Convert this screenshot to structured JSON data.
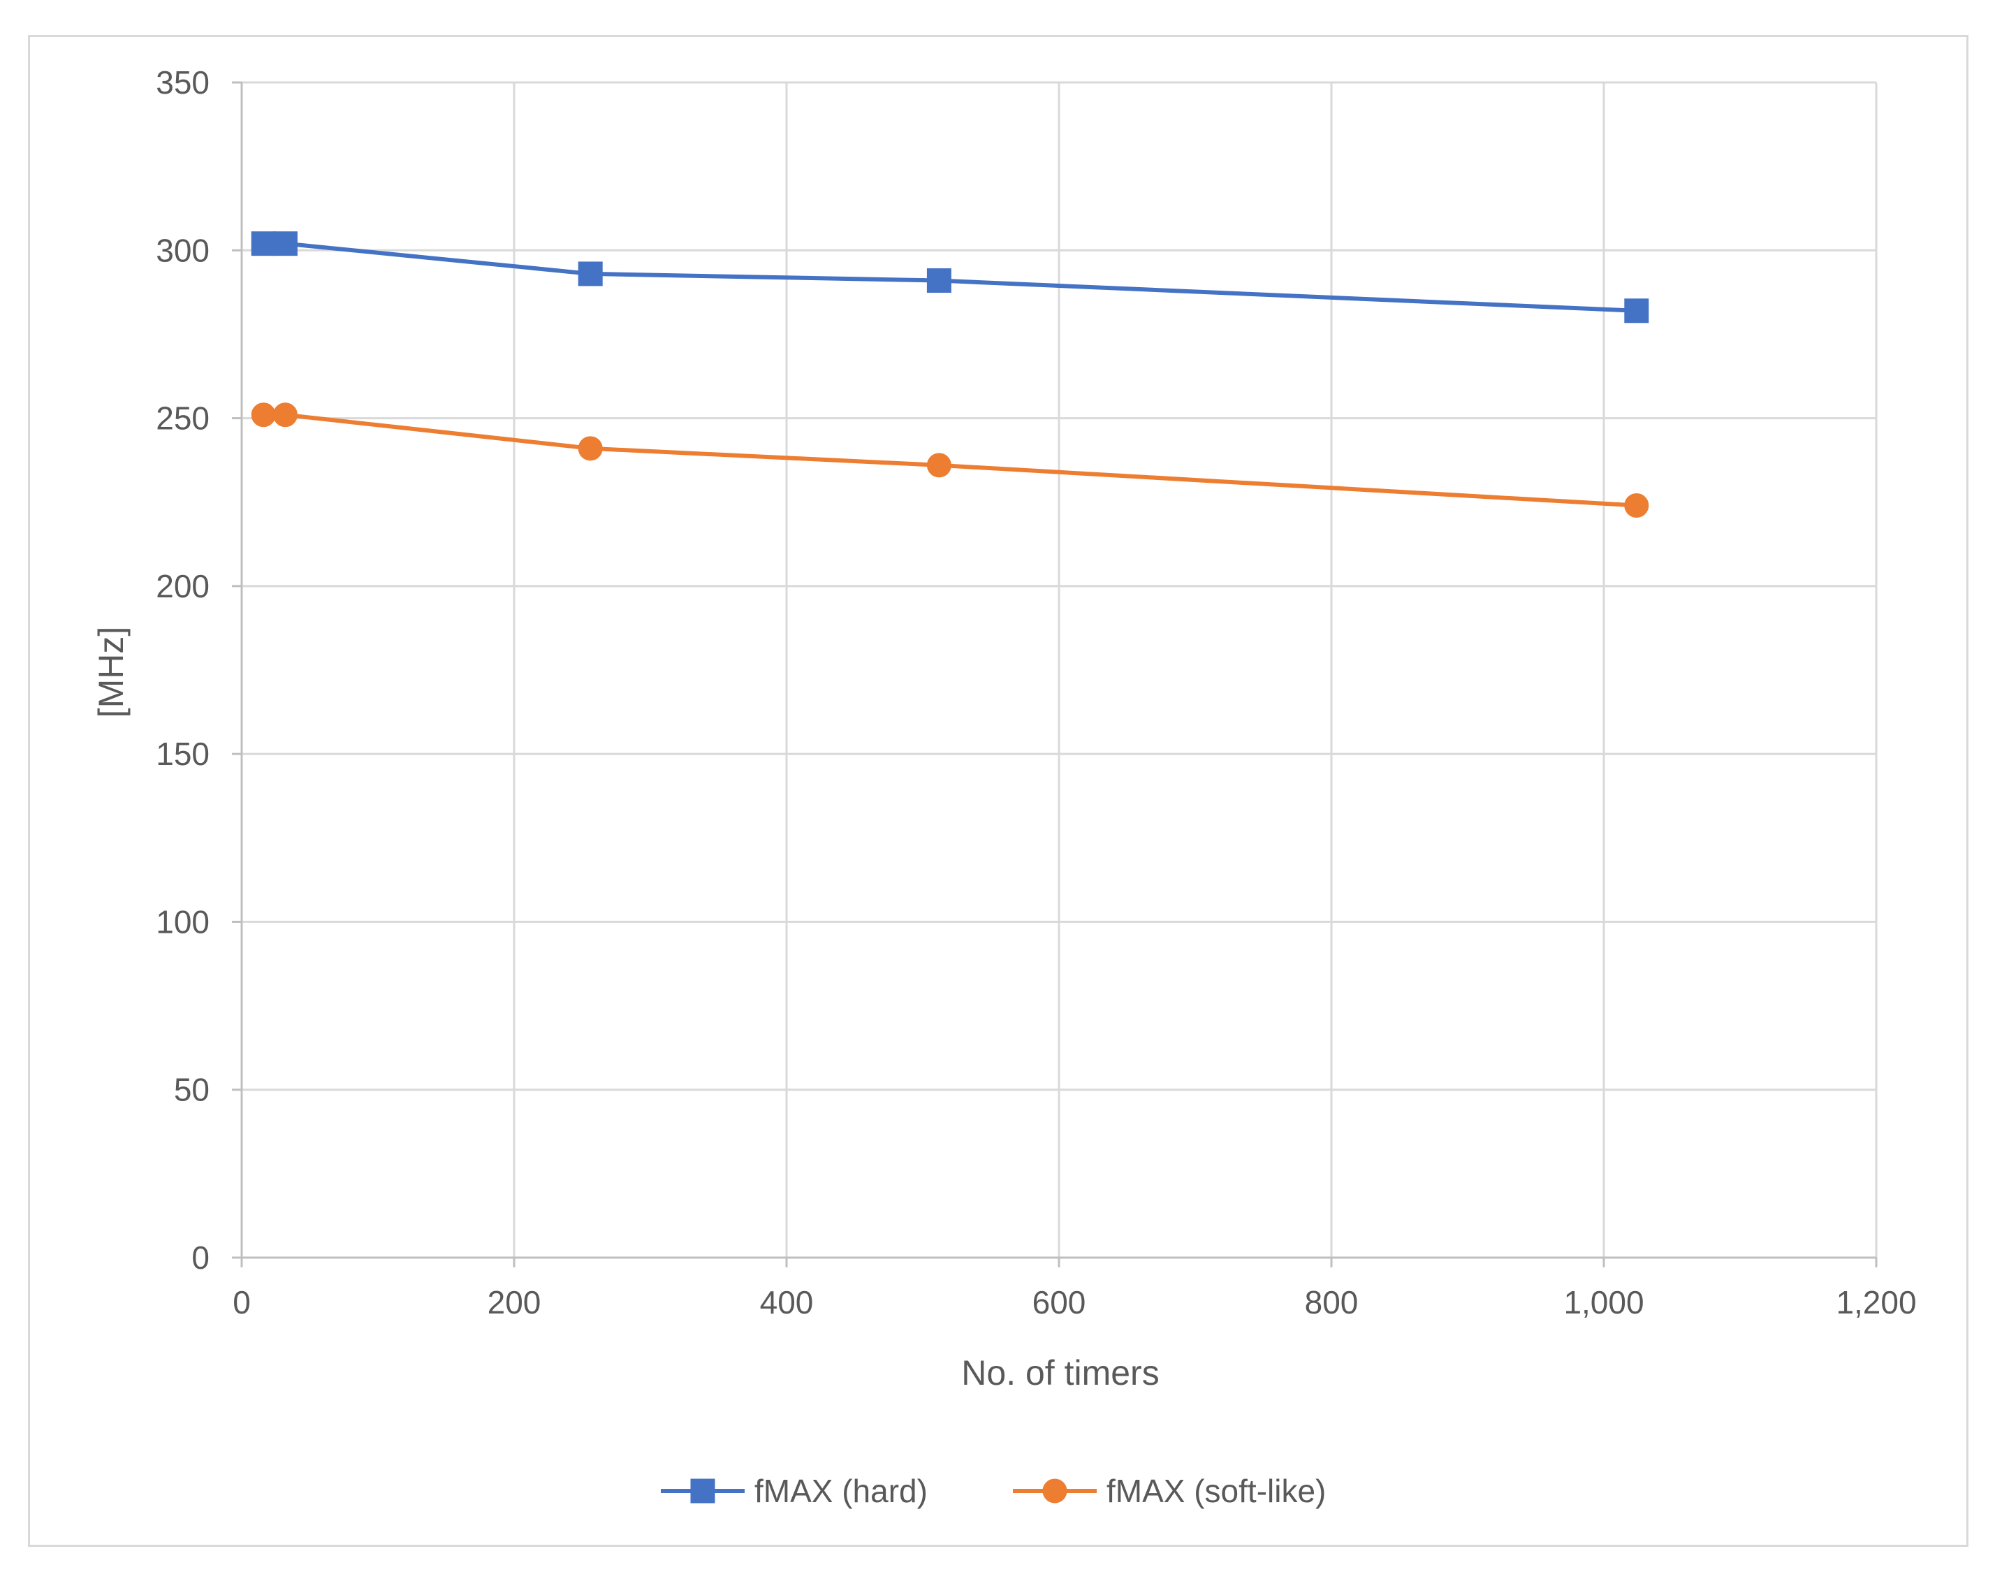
{
  "chart_data": {
    "type": "scatter",
    "title": "",
    "xlabel": "No. of timers",
    "ylabel": "[MHz]",
    "xlim": [
      0,
      1200
    ],
    "ylim": [
      0,
      350
    ],
    "x_ticks": [
      0,
      200,
      400,
      600,
      800,
      1000,
      1200
    ],
    "x_tick_labels": [
      "0",
      "200",
      "400",
      "600",
      "800",
      "1,000",
      "1,200"
    ],
    "y_ticks": [
      0,
      50,
      100,
      150,
      200,
      250,
      300,
      350
    ],
    "y_tick_labels": [
      "0",
      "50",
      "100",
      "150",
      "200",
      "250",
      "300",
      "350"
    ],
    "grid": true,
    "legend_position": "bottom",
    "lines_with_markers": true,
    "series": [
      {
        "name": "fMAX (hard)",
        "color": "#4472C4",
        "marker": "square",
        "x": [
          16,
          32,
          256,
          512,
          1024
        ],
        "y": [
          302,
          302,
          293,
          291,
          282
        ]
      },
      {
        "name": "fMAX (soft-like)",
        "color": "#ED7D31",
        "marker": "circle",
        "x": [
          16,
          32,
          256,
          512,
          1024
        ],
        "y": [
          251,
          251,
          241,
          236,
          224
        ]
      }
    ]
  }
}
